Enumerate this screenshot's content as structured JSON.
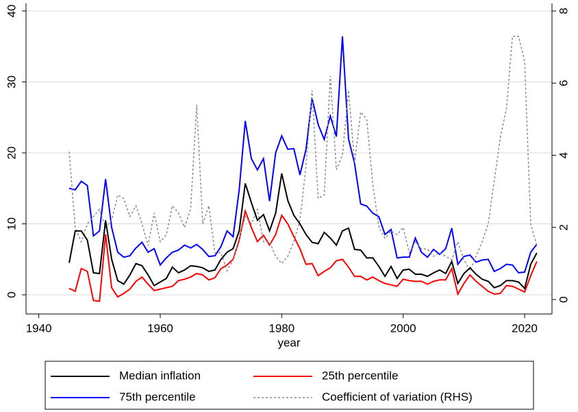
{
  "chart_data": {
    "type": "line",
    "x_label": "year",
    "x": [
      1945,
      1946,
      1947,
      1948,
      1949,
      1950,
      1951,
      1952,
      1953,
      1954,
      1955,
      1956,
      1957,
      1958,
      1959,
      1960,
      1961,
      1962,
      1963,
      1964,
      1965,
      1966,
      1967,
      1968,
      1969,
      1970,
      1971,
      1972,
      1973,
      1974,
      1975,
      1976,
      1977,
      1978,
      1979,
      1980,
      1981,
      1982,
      1983,
      1984,
      1985,
      1986,
      1987,
      1988,
      1989,
      1990,
      1991,
      1992,
      1993,
      1994,
      1995,
      1996,
      1997,
      1998,
      1999,
      2000,
      2001,
      2002,
      2003,
      2004,
      2005,
      2006,
      2007,
      2008,
      2009,
      2010,
      2011,
      2012,
      2013,
      2014,
      2015,
      2016,
      2017,
      2018,
      2019,
      2020,
      2021,
      2022
    ],
    "xlim": [
      1937.9,
      2024.5
    ],
    "xticks": [
      1940,
      1960,
      1980,
      2000,
      2020
    ],
    "ylim": [
      -2.7,
      41.06
    ],
    "yticks": [
      0,
      10,
      20,
      30,
      40
    ],
    "y2lim": [
      -0.4,
      8.21
    ],
    "y2ticks": [
      0,
      2,
      4,
      6,
      8
    ],
    "grid": true,
    "series": [
      {
        "name": "Median inflation",
        "color": "#000000",
        "line_style": "solid",
        "values": [
          4.5,
          9,
          9,
          7.7,
          3.1,
          3,
          10.5,
          5,
          2,
          1.5,
          2.8,
          4.4,
          4.1,
          2.8,
          1.3,
          1.8,
          2.3,
          3.9,
          3.1,
          3.5,
          4.1,
          4,
          3.8,
          3.3,
          3.5,
          5,
          6,
          6.5,
          9,
          15.7,
          13,
          10.5,
          11.3,
          9,
          11.5,
          17.1,
          13.3,
          11.2,
          10,
          8.5,
          7.4,
          7.2,
          8.8,
          8,
          7,
          9,
          9.4,
          6.4,
          6.3,
          5.2,
          5.2,
          4,
          2.6,
          4,
          2.3,
          3.5,
          3.6,
          2.9,
          2.9,
          2.6,
          3.1,
          3.5,
          3,
          4.7,
          1.6,
          3,
          3.8,
          2.9,
          2.2,
          1.9,
          1,
          1.3,
          2,
          2,
          1.8,
          0.9,
          4.3,
          5.9
        ]
      },
      {
        "name": "25th percentile",
        "color": "#ff0000",
        "line_style": "solid",
        "values": [
          0.9,
          0.5,
          3.7,
          3.3,
          -0.8,
          -0.9,
          8.5,
          1,
          -0.3,
          0.2,
          0.8,
          1.9,
          2.5,
          1.5,
          0.6,
          0.8,
          1,
          1.2,
          2,
          2.2,
          2.5,
          3,
          2.8,
          2.1,
          2.4,
          3.7,
          4.2,
          5,
          7.7,
          11.8,
          9.5,
          7.5,
          8.4,
          7,
          8.5,
          11.2,
          10,
          8.2,
          6.5,
          4.3,
          4.4,
          2.7,
          3.3,
          3.8,
          4.8,
          5,
          3.9,
          2.6,
          2.6,
          2.1,
          2.5,
          2,
          1.6,
          1.4,
          1.2,
          2.2,
          2,
          1.9,
          1.9,
          1.5,
          1.9,
          2.1,
          2.1,
          3.7,
          0.1,
          1.6,
          2.8,
          1.9,
          1.2,
          0.5,
          0.1,
          0.2,
          1.3,
          1.2,
          0.8,
          0.4,
          2.7,
          4.7
        ]
      },
      {
        "name": "75th percentile",
        "color": "#0000ff",
        "line_style": "solid",
        "values": [
          15,
          14.8,
          16,
          15.4,
          8.3,
          9,
          16.3,
          9.5,
          6,
          5.3,
          5.5,
          6.6,
          7.4,
          6,
          6.5,
          4.2,
          5.2,
          6,
          6.3,
          7,
          6.6,
          7.1,
          6.4,
          5.4,
          5.5,
          6.8,
          9,
          8.2,
          14.8,
          24.5,
          19.2,
          17.6,
          19.2,
          13.2,
          20,
          22.4,
          20.5,
          20.6,
          16.9,
          20.5,
          27.7,
          24,
          21.9,
          25.2,
          22.3,
          36.4,
          22,
          18.5,
          12.8,
          12.5,
          11.5,
          11,
          8.5,
          9.2,
          5.2,
          5.3,
          5.3,
          8,
          6,
          5.3,
          6.4,
          5.7,
          6.5,
          9.4,
          4.3,
          5.4,
          5.6,
          4.6,
          4.9,
          5,
          3.3,
          3.7,
          4.3,
          4.2,
          3.1,
          3.2,
          6,
          7.1
        ]
      },
      {
        "name": "Coefficient of variation (RHS)",
        "color": "#888888",
        "line_style": "dotted",
        "axis": "y2",
        "values": [
          4.1,
          2.0,
          1.6,
          2.1,
          2.3,
          2.5,
          2.0,
          2.2,
          2.9,
          2.8,
          2.3,
          2.6,
          2.1,
          1.5,
          2.4,
          1.6,
          1.8,
          2.6,
          2.4,
          2.0,
          2.5,
          5.4,
          2.1,
          2.6,
          1.3,
          1.3,
          0.8,
          1.1,
          1.7,
          2.3,
          2.1,
          2.5,
          1.6,
          1.6,
          1.2,
          1.0,
          1.2,
          1.6,
          2.2,
          3.7,
          5.8,
          2.8,
          2.9,
          6.2,
          3.6,
          4.0,
          5.8,
          3.8,
          5.2,
          5.0,
          3.2,
          2.0,
          1.7,
          1.9,
          1.8,
          2.0,
          1.3,
          1.6,
          1.4,
          1.4,
          1.2,
          1.3,
          1.2,
          1.1,
          1.6,
          1.1,
          0.8,
          1.2,
          1.6,
          2.1,
          3.3,
          4.5,
          5.3,
          7.3,
          7.3,
          6.6,
          2.1,
          1.5
        ]
      }
    ]
  }
}
